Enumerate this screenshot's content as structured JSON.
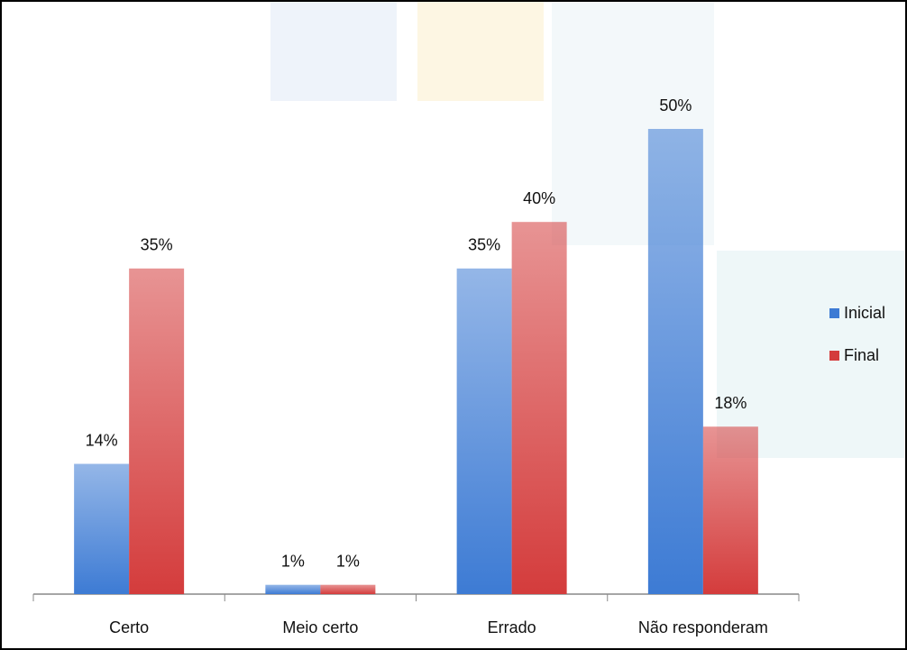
{
  "chart_data": {
    "type": "bar",
    "categories": [
      "Certo",
      "Meio certo",
      "Errado",
      "Não responderam"
    ],
    "series": [
      {
        "name": "Inicial",
        "color": "#3d7bd4",
        "values": [
          14,
          1,
          35,
          50
        ],
        "value_labels": [
          "14%",
          "1%",
          "35%",
          "50%"
        ]
      },
      {
        "name": "Final",
        "color": "#d43c3c",
        "values": [
          35,
          1,
          40,
          18
        ],
        "value_labels": [
          "35%",
          "1%",
          "40%",
          "18%"
        ]
      }
    ],
    "legend": "right"
  }
}
